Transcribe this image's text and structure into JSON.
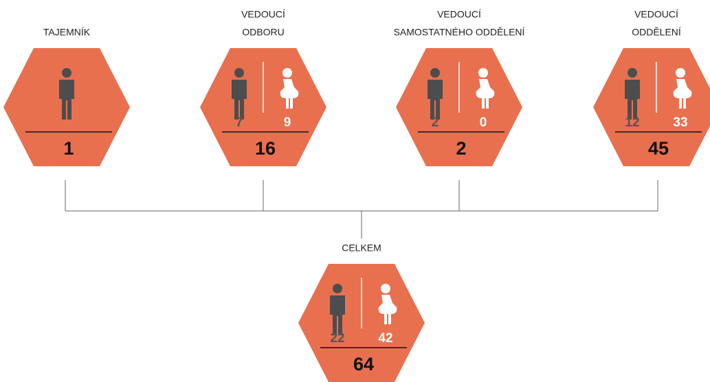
{
  "nodes": [
    {
      "label": [
        "TAJEMNÍK"
      ],
      "total": 1
    },
    {
      "label": [
        "VEDOUCÍ",
        "ODBORU"
      ],
      "men": 7,
      "women": 9,
      "total": 16
    },
    {
      "label": [
        "VEDOUCÍ",
        "SAMOSTATNÉHO ODDĚLENÍ"
      ],
      "men": 2,
      "women": 0,
      "total": 2
    },
    {
      "label": [
        "VEDOUCÍ",
        "ODDĚLENÍ"
      ],
      "men": 12,
      "women": 33,
      "total": 45
    }
  ],
  "summary": {
    "label": [
      "CELKEM"
    ],
    "men": 22,
    "women": 42,
    "total": 64
  }
}
